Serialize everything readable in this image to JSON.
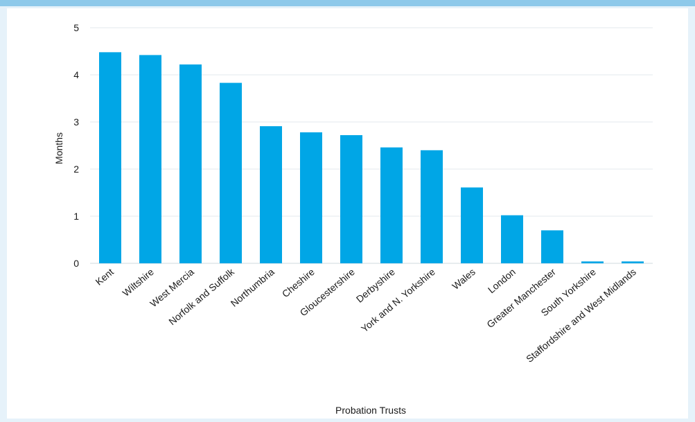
{
  "chart_data": {
    "type": "bar",
    "title": "",
    "xlabel": "Probation Trusts",
    "ylabel": "Months",
    "ylim": [
      0,
      5
    ],
    "yticks": [
      "0",
      "1",
      "2",
      "3",
      "4",
      "5"
    ],
    "grid": true,
    "legend": "none",
    "bar_color": "#00a6e6",
    "categories": [
      "Kent",
      "Wiltshire",
      "West Mercia",
      "Norfolk and Suffolk",
      "Northumbria",
      "Cheshire",
      "Gloucestershire",
      "Derbyshire",
      "York and N. Yorkshire",
      "Wales",
      "London",
      "Greater Manchester",
      "South Yorkshire",
      "Staffordshire and West Midlands"
    ],
    "values": [
      4.48,
      4.42,
      4.22,
      3.83,
      2.91,
      2.78,
      2.72,
      2.46,
      2.4,
      1.61,
      1.02,
      0.7,
      0.04,
      0.04
    ]
  }
}
